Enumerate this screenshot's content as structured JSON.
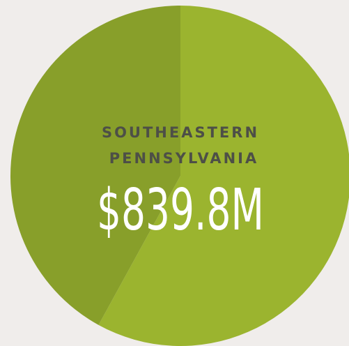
{
  "chart_data": {
    "type": "pie",
    "title_lines": [
      "SOUTHEASTERN",
      "PENNSYLVANIA"
    ],
    "annotation": "$839.8M",
    "values": [
      58,
      42
    ],
    "colors": [
      "#9bb42f",
      "#889f2a"
    ],
    "start_angle": 0,
    "direction": "clockwise"
  }
}
